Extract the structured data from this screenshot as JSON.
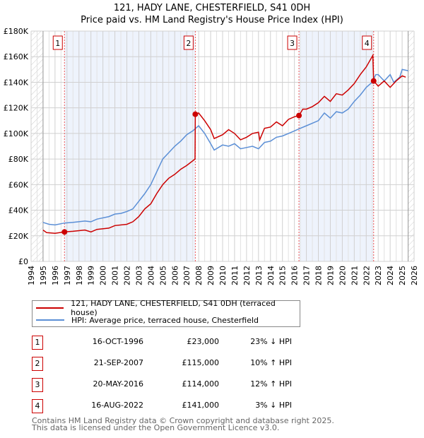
{
  "chart_data": {
    "type": "line",
    "title": "121, HADY LANE, CHESTERFIELD, S41 0DH",
    "subtitle": "Price paid vs. HM Land Registry's House Price Index (HPI)",
    "xlim": [
      1994,
      2026
    ],
    "ylim": [
      0,
      180000
    ],
    "x_ticks": [
      "1994",
      "1995",
      "1996",
      "1997",
      "1998",
      "1999",
      "2000",
      "2001",
      "2002",
      "2003",
      "2004",
      "2005",
      "2006",
      "2007",
      "2008",
      "2009",
      "2010",
      "2011",
      "2012",
      "2013",
      "2014",
      "2015",
      "2016",
      "2017",
      "2018",
      "2019",
      "2020",
      "2021",
      "2022",
      "2023",
      "2024",
      "2025",
      "2026"
    ],
    "y_ticks": [
      {
        "v": 0,
        "label": "£0"
      },
      {
        "v": 20000,
        "label": "£20K"
      },
      {
        "v": 40000,
        "label": "£40K"
      },
      {
        "v": 60000,
        "label": "£60K"
      },
      {
        "v": 80000,
        "label": "£80K"
      },
      {
        "v": 100000,
        "label": "£100K"
      },
      {
        "v": 120000,
        "label": "£120K"
      },
      {
        "v": 140000,
        "label": "£140K"
      },
      {
        "v": 160000,
        "label": "£160K"
      },
      {
        "v": 180000,
        "label": "£180K"
      }
    ],
    "grid": true,
    "hatched_ranges": [
      [
        1994,
        1995
      ],
      [
        2025.5,
        2026
      ]
    ],
    "shaded_ranges": [
      [
        1996.79,
        2007.72
      ],
      [
        2016.38,
        2022.62
      ]
    ],
    "series": [
      {
        "name": "121, HADY LANE, CHESTERFIELD, S41 0DH (terraced house)",
        "color": "#cc0000",
        "x": [
          1995,
          1995.3,
          1996,
          1996.79,
          1997.5,
          1998.5,
          1999,
          1999.5,
          2000.5,
          2001,
          2002,
          2002.5,
          2003,
          2003.5,
          2004,
          2004.5,
          2005,
          2005.5,
          2006,
          2006.5,
          2007,
          2007.7,
          2007.72,
          2008,
          2008.5,
          2009,
          2009.3,
          2010,
          2010.5,
          2011,
          2011.5,
          2012,
          2012.5,
          2013,
          2013.1,
          2013.5,
          2014,
          2014.5,
          2015,
          2015.5,
          2016,
          2016.38,
          2016.7,
          2017,
          2017.5,
          2018,
          2018.5,
          2019,
          2019.5,
          2020,
          2020.5,
          2021,
          2021.5,
          2022,
          2022.55,
          2022.62,
          2023,
          2023.5,
          2024,
          2024.5,
          2025,
          2025.3
        ],
        "values": [
          24500,
          22500,
          22000,
          23000,
          23500,
          24500,
          23000,
          25000,
          26000,
          28000,
          29000,
          31000,
          35000,
          41000,
          45000,
          53000,
          60000,
          65000,
          68000,
          72000,
          75000,
          80000,
          115000,
          116000,
          110000,
          103000,
          96000,
          99000,
          103000,
          100000,
          95000,
          97000,
          100000,
          101000,
          95000,
          104000,
          105000,
          109000,
          106000,
          111000,
          113000,
          114000,
          119000,
          119000,
          121000,
          124000,
          129000,
          125000,
          131000,
          130000,
          134000,
          139000,
          146000,
          152000,
          161000,
          141000,
          137000,
          141000,
          136000,
          141000,
          145000,
          144000
        ]
      },
      {
        "name": "HPI: Average price, terraced house, Chesterfield",
        "color": "#5b8fd6",
        "x": [
          1995,
          1995.5,
          1996,
          1996.79,
          1997.5,
          1998.5,
          1999,
          1999.5,
          2000.5,
          2001,
          2001.5,
          2002,
          2002.5,
          2003,
          2003.5,
          2004,
          2004.5,
          2005,
          2005.5,
          2006,
          2006.5,
          2007,
          2007.5,
          2008,
          2008.5,
          2009,
          2009.3,
          2010,
          2010.5,
          2011,
          2011.5,
          2012,
          2012.5,
          2013,
          2013.5,
          2014,
          2014.5,
          2015,
          2015.5,
          2016,
          2016.5,
          2017,
          2017.5,
          2018,
          2018.5,
          2019,
          2019.5,
          2020,
          2020.5,
          2021,
          2021.5,
          2022,
          2022.5,
          2022.8,
          2023,
          2023.5,
          2024,
          2024.3,
          2024.8,
          2025,
          2025.5
        ],
        "values": [
          30500,
          29000,
          28500,
          30000,
          30500,
          31500,
          31000,
          33000,
          35000,
          37000,
          37500,
          39000,
          41000,
          47000,
          53000,
          60000,
          70000,
          80000,
          85000,
          90000,
          94000,
          99000,
          102000,
          106000,
          100000,
          92000,
          87000,
          91000,
          90000,
          92000,
          88000,
          89000,
          90000,
          88000,
          93000,
          94000,
          97000,
          98000,
          100000,
          102000,
          104000,
          106000,
          108000,
          110000,
          116000,
          112000,
          117000,
          116000,
          119000,
          125000,
          130000,
          136000,
          140000,
          146000,
          146000,
          141000,
          146000,
          140000,
          144000,
          150000,
          149000
        ]
      }
    ],
    "sales": [
      {
        "id": "1",
        "x": 1996.79,
        "price": 23000
      },
      {
        "id": "2",
        "x": 2007.72,
        "price": 115000
      },
      {
        "id": "3",
        "x": 2016.38,
        "price": 114000
      },
      {
        "id": "4",
        "x": 2022.62,
        "price": 141000
      }
    ]
  },
  "legend": {
    "property": "121, HADY LANE, CHESTERFIELD, S41 0DH (terraced house)",
    "hpi": "HPI: Average price, terraced house, Chesterfield"
  },
  "transactions": [
    {
      "num": "1",
      "date": "16-OCT-1996",
      "price": "£23,000",
      "hpi": "23% ↓ HPI"
    },
    {
      "num": "2",
      "date": "21-SEP-2007",
      "price": "£115,000",
      "hpi": "10% ↑ HPI"
    },
    {
      "num": "3",
      "date": "20-MAY-2016",
      "price": "£114,000",
      "hpi": "12% ↑ HPI"
    },
    {
      "num": "4",
      "date": "16-AUG-2022",
      "price": "£141,000",
      "hpi": "3% ↓ HPI"
    }
  ],
  "footer": {
    "line1": "Contains HM Land Registry data © Crown copyright and database right 2025.",
    "line2": "This data is licensed under the Open Government Licence v3.0."
  }
}
